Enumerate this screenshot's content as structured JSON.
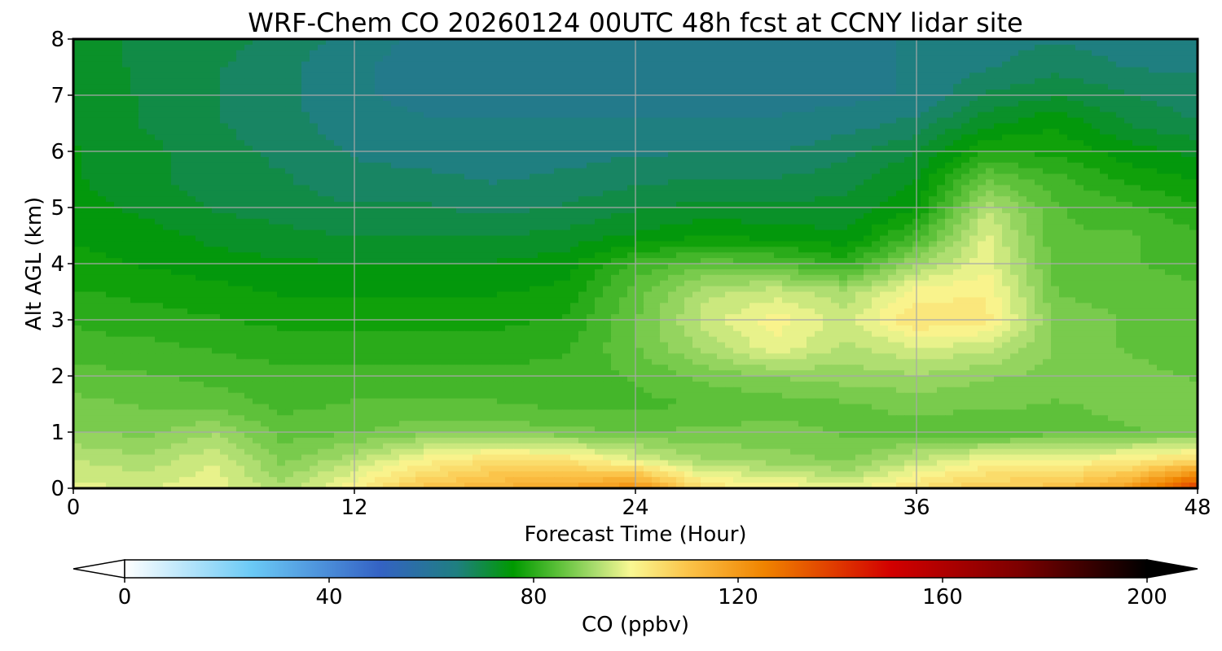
{
  "chart_data": {
    "type": "heatmap",
    "title": "WRF-Chem CO  20260124 00UTC 48h fcst at CCNY lidar site",
    "xlabel": "Forecast Time (Hour)",
    "ylabel": "Alt AGL (km)",
    "xlim": [
      0,
      48
    ],
    "ylim": [
      0,
      8
    ],
    "xticks": [
      0,
      12,
      24,
      36,
      48
    ],
    "yticks": [
      0,
      1,
      2,
      3,
      4,
      5,
      6,
      7,
      8
    ],
    "grid": true,
    "x": [
      0,
      3,
      6,
      9,
      12,
      15,
      18,
      21,
      24,
      27,
      30,
      33,
      36,
      39,
      42,
      45,
      48
    ],
    "y": [
      0,
      0.5,
      1,
      1.5,
      2,
      2.5,
      3,
      3.5,
      4,
      4.5,
      5,
      5.5,
      6,
      6.5,
      7,
      7.5,
      8
    ],
    "values": [
      [
        97,
        96,
        98,
        92,
        101,
        110,
        114,
        117,
        122,
        103,
        101,
        97,
        104,
        109,
        110,
        118,
        140
      ],
      [
        94,
        92,
        96,
        88,
        93,
        100,
        104,
        103,
        97,
        91,
        90,
        88,
        94,
        99,
        99,
        101,
        105
      ],
      [
        89,
        88,
        91,
        85,
        86,
        88,
        88,
        87,
        86,
        87,
        87,
        86,
        85,
        84,
        85,
        86,
        87
      ],
      [
        87,
        86,
        85,
        83,
        84,
        84,
        84,
        83,
        83,
        84,
        85,
        86,
        87,
        87,
        86,
        87,
        87
      ],
      [
        85,
        84,
        83,
        82,
        82,
        82,
        82,
        82,
        84,
        87,
        89,
        90,
        91,
        89,
        88,
        87,
        86
      ],
      [
        82,
        82,
        81,
        80,
        80,
        80,
        80,
        81,
        86,
        92,
        98,
        93,
        96,
        95,
        88,
        86,
        85
      ],
      [
        81,
        80,
        79,
        78,
        78,
        78,
        78,
        79,
        86,
        95,
        100,
        95,
        104,
        102,
        88,
        86,
        85
      ],
      [
        79,
        78,
        77,
        76,
        76,
        76,
        76,
        77,
        85,
        93,
        95,
        92,
        100,
        101,
        86,
        85,
        84
      ],
      [
        77,
        76,
        75,
        74,
        74,
        74,
        74,
        75,
        82,
        85,
        84,
        80,
        91,
        98,
        85,
        84,
        83
      ],
      [
        76,
        75,
        73,
        72,
        71,
        71,
        71,
        72,
        74,
        76,
        75,
        74,
        82,
        97,
        84,
        84,
        82
      ],
      [
        75,
        73,
        71,
        70,
        69,
        69,
        68,
        69,
        71,
        72,
        72,
        72,
        76,
        93,
        84,
        82,
        79
      ],
      [
        74,
        72,
        70,
        69,
        67,
        67,
        66,
        67,
        68,
        69,
        69,
        70,
        74,
        86,
        82,
        78,
        76
      ],
      [
        74,
        72,
        70,
        68,
        66,
        65,
        64,
        65,
        66,
        66,
        66,
        68,
        71,
        79,
        78,
        75,
        73
      ],
      [
        73,
        71,
        69,
        67,
        65,
        64,
        64,
        64,
        64,
        64,
        64,
        65,
        67,
        73,
        76,
        71,
        69
      ],
      [
        73,
        71,
        69,
        67,
        64,
        63,
        63,
        63,
        63,
        63,
        63,
        63,
        64,
        69,
        71,
        69,
        67
      ],
      [
        72,
        71,
        69,
        67,
        64,
        63,
        63,
        63,
        63,
        63,
        63,
        63,
        64,
        66,
        68,
        66,
        66
      ],
      [
        72,
        71,
        70,
        68,
        65,
        63,
        63,
        63,
        63,
        63,
        63,
        63,
        64,
        65,
        66,
        65,
        65
      ]
    ],
    "colorbar": {
      "label": "CO  (ppbv)",
      "min": 0,
      "max": 200,
      "ticks": [
        0,
        40,
        80,
        120,
        160,
        200
      ],
      "extend": "both",
      "stops": [
        {
          "value": 0,
          "color": "#ffffff"
        },
        {
          "value": 25,
          "color": "#6ac9f5"
        },
        {
          "value": 50,
          "color": "#3462c4"
        },
        {
          "value": 65,
          "color": "#1f7f80"
        },
        {
          "value": 76,
          "color": "#009a00"
        },
        {
          "value": 85,
          "color": "#5ec13a"
        },
        {
          "value": 92,
          "color": "#a9dc6e"
        },
        {
          "value": 99,
          "color": "#f9f893"
        },
        {
          "value": 110,
          "color": "#fbc44a"
        },
        {
          "value": 125,
          "color": "#f08400"
        },
        {
          "value": 150,
          "color": "#d20000"
        },
        {
          "value": 175,
          "color": "#7c0000"
        },
        {
          "value": 200,
          "color": "#000000"
        }
      ]
    }
  }
}
